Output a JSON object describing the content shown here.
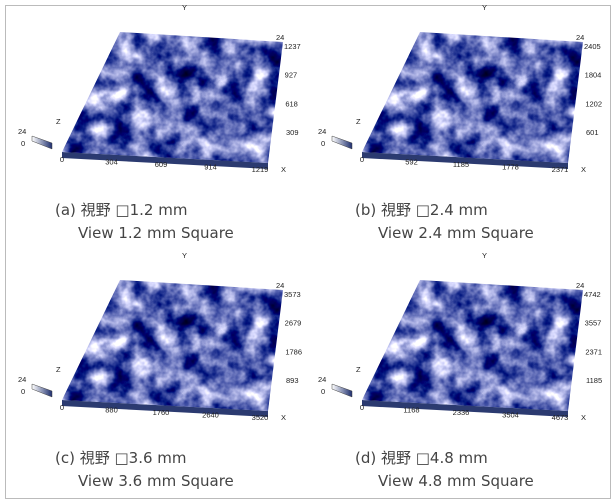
{
  "panels": [
    {
      "x_ticks": [
        0,
        304,
        609,
        914,
        1219
      ],
      "x_axis": "X",
      "y_ticks": [
        309,
        618,
        927,
        1237
      ],
      "y_axis": "Y",
      "z_axis": "Z",
      "z_top": 24,
      "z_scale": [
        24,
        0
      ],
      "caption": "(a) 視野 □1.2 mm",
      "caption_en": "View 1.2 mm Square"
    },
    {
      "x_ticks": [
        0,
        592,
        1185,
        1778,
        2371
      ],
      "x_axis": "X",
      "y_ticks": [
        601,
        1202,
        1804,
        2405
      ],
      "y_axis": "Y",
      "z_axis": "Z",
      "z_top": 24,
      "z_scale": [
        24,
        0
      ],
      "caption": "(b) 視野 □2.4 mm",
      "caption_en": "View 2.4 mm Square"
    },
    {
      "x_ticks": [
        0,
        880,
        1760,
        2640,
        3520
      ],
      "x_axis": "X",
      "y_ticks": [
        893,
        1786,
        2679,
        3573
      ],
      "y_axis": "Y",
      "z_axis": "Z",
      "z_top": 24,
      "z_scale": [
        24,
        0
      ],
      "caption": "(c) 視野 □3.6 mm",
      "caption_en": "View 3.6 mm Square"
    },
    {
      "x_ticks": [
        0,
        1168,
        2336,
        3504,
        4673
      ],
      "x_axis": "X",
      "y_ticks": [
        1185,
        2371,
        3557,
        4742
      ],
      "y_axis": "Y",
      "z_axis": "Z",
      "z_top": 24,
      "z_scale": [
        24,
        0
      ],
      "caption": "(d) 視野 □4.8 mm",
      "caption_en": "View 4.8 mm Square"
    }
  ]
}
